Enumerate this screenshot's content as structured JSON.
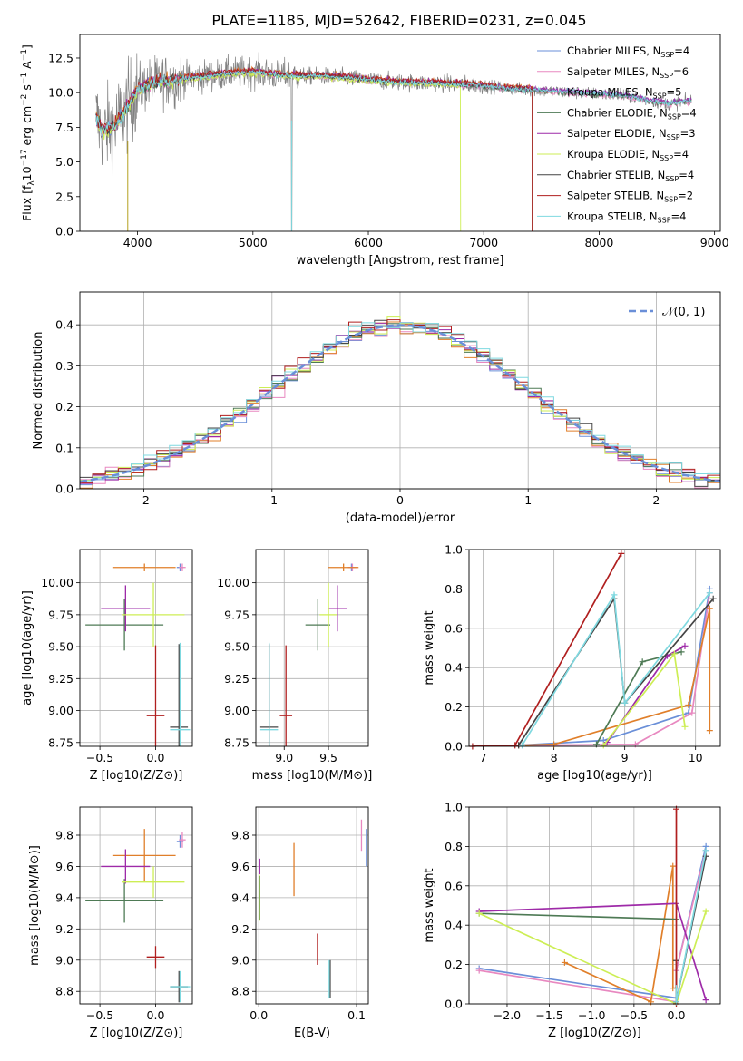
{
  "figure": {
    "title": "PLATE=1185, MJD=52642, FIBERID=0231, z=0.045"
  },
  "models": [
    {
      "key": "chabrier_miles",
      "label": "Chabrier MILES, N",
      "nssp": "=4",
      "color": "#6a8fd8"
    },
    {
      "key": "salpeter_miles",
      "label": "Salpeter MILES, N",
      "nssp": "=6",
      "color": "#e888c0"
    },
    {
      "key": "kroupa_miles",
      "label": "Kroupa MILES, N",
      "nssp": "=5",
      "color": "#e07f2a"
    },
    {
      "key": "chabrier_elodie",
      "label": "Chabrier ELODIE, N",
      "nssp": "=4",
      "color": "#4e7a55"
    },
    {
      "key": "salpeter_elodie",
      "label": "Salpeter ELODIE, N",
      "nssp": "=3",
      "color": "#9e2aa8"
    },
    {
      "key": "kroupa_elodie",
      "label": "Kroupa ELODIE, N",
      "nssp": "=4",
      "color": "#cdee55"
    },
    {
      "key": "chabrier_stelib",
      "label": "Chabrier STELIB, N",
      "nssp": "=4",
      "color": "#444444"
    },
    {
      "key": "salpeter_stelib",
      "label": "Salpeter STELIB, N",
      "nssp": "=2",
      "color": "#b01f1f"
    },
    {
      "key": "kroupa_stelib",
      "label": "Kroupa STELIB, N",
      "nssp": "=4",
      "color": "#7fd9e0"
    }
  ],
  "chart_data": [
    {
      "id": "spectrum",
      "type": "line",
      "title": "PLATE=1185, MJD=52642, FIBERID=0231, z=0.045",
      "xlabel": "wavelength [Angstrom, rest frame]",
      "ylabel": "Flux [f_λ 10^-17 erg cm^-2 s^-1 A^-1]",
      "xlim": [
        3500,
        9050
      ],
      "ylim": [
        0,
        14.2
      ],
      "xticks": [
        4000,
        5000,
        6000,
        7000,
        8000,
        9000
      ],
      "yticks": [
        "0.0",
        "2.5",
        "5.0",
        "7.5",
        "10.0",
        "12.5"
      ],
      "data_series_color": "#808080",
      "continuum": [
        [
          3640,
          8.2
        ],
        [
          3700,
          7.2
        ],
        [
          3800,
          7.6
        ],
        [
          3900,
          8.8
        ],
        [
          4000,
          10.2
        ],
        [
          4100,
          10.6
        ],
        [
          4200,
          10.9
        ],
        [
          4300,
          10.8
        ],
        [
          4400,
          11.0
        ],
        [
          4600,
          11.2
        ],
        [
          4800,
          11.4
        ],
        [
          5000,
          11.5
        ],
        [
          5200,
          11.3
        ],
        [
          5400,
          11.2
        ],
        [
          5600,
          11.2
        ],
        [
          5800,
          11.1
        ],
        [
          6000,
          10.9
        ],
        [
          6200,
          10.8
        ],
        [
          6400,
          10.7
        ],
        [
          6600,
          10.7
        ],
        [
          6800,
          10.6
        ],
        [
          7000,
          10.5
        ],
        [
          7200,
          10.3
        ],
        [
          7400,
          10.2
        ],
        [
          7600,
          10.1
        ],
        [
          7800,
          10.0
        ],
        [
          8000,
          9.9
        ],
        [
          8200,
          9.8
        ],
        [
          8400,
          9.5
        ],
        [
          8600,
          9.2
        ],
        [
          8800,
          9.4
        ]
      ]
    },
    {
      "id": "residuals",
      "type": "line",
      "xlabel": "(data-model)/error",
      "ylabel": "Normed distribution",
      "xlim": [
        -2.5,
        2.5
      ],
      "ylim": [
        0,
        0.48
      ],
      "xticks": [
        -2,
        -1,
        0,
        1,
        2
      ],
      "yticks": [
        "0.0",
        "0.1",
        "0.2",
        "0.3",
        "0.4"
      ],
      "reference": {
        "name": "N(0,1)",
        "label": "𝒩(0, 1)",
        "color": "#6a8fd8"
      }
    },
    {
      "id": "age_vs_z",
      "type": "scatter",
      "xlabel": "Z [log10(Z/Z⊙)]",
      "ylabel": "age [log10(age/yr)]",
      "xlim": [
        -0.68,
        0.33
      ],
      "ylim": [
        8.72,
        10.26
      ],
      "xticks": [
        "−0.5",
        "0.0"
      ],
      "xtick_values": [
        -0.5,
        0.0
      ],
      "yticks": [
        "8.75",
        "9.00",
        "9.25",
        "9.50",
        "9.75",
        "10.00"
      ],
      "ytick_values": [
        8.75,
        9.0,
        9.25,
        9.5,
        9.75,
        10.0
      ],
      "points": [
        {
          "model": "chabrier_miles",
          "x": 0.22,
          "xerr": 0.03,
          "y": 10.12,
          "yerr": 0.03
        },
        {
          "model": "salpeter_miles",
          "x": 0.24,
          "xerr": 0.03,
          "y": 10.12,
          "yerr": 0.03
        },
        {
          "model": "kroupa_miles",
          "x": -0.1,
          "xerr": 0.28,
          "y": 10.12,
          "yerr": 0.03
        },
        {
          "model": "chabrier_elodie",
          "x": -0.28,
          "xerr": 0.35,
          "y": 9.67,
          "yerr": 0.2
        },
        {
          "model": "salpeter_elodie",
          "x": -0.27,
          "xerr": 0.22,
          "y": 9.8,
          "yerr": 0.18
        },
        {
          "model": "kroupa_elodie",
          "x": -0.02,
          "xerr": 0.28,
          "y": 9.75,
          "yerr": 0.25
        },
        {
          "model": "chabrier_stelib",
          "x": 0.21,
          "xerr": 0.08,
          "y": 8.87,
          "yerr": 0.65
        },
        {
          "model": "salpeter_stelib",
          "x": 0.0,
          "xerr": 0.08,
          "y": 8.96,
          "yerr": 0.55
        },
        {
          "model": "kroupa_stelib",
          "x": 0.22,
          "xerr": 0.09,
          "y": 8.85,
          "yerr": 0.68
        }
      ]
    },
    {
      "id": "age_vs_mass",
      "type": "scatter",
      "xlabel": "mass [log10(M/M⊙)]",
      "ylabel": "",
      "xlim": [
        8.68,
        9.95
      ],
      "ylim": [
        8.72,
        10.26
      ],
      "xticks": [
        "9.0",
        "9.5"
      ],
      "xtick_values": [
        9.0,
        9.5
      ],
      "yticks": [
        "8.75",
        "9.00",
        "9.25",
        "9.50",
        "9.75",
        "10.00"
      ],
      "ytick_values": [
        8.75,
        9.0,
        9.25,
        9.5,
        9.75,
        10.0
      ],
      "points": [
        {
          "model": "chabrier_miles",
          "x": 9.76,
          "xerr": 0.04,
          "y": 10.12,
          "yerr": 0.03
        },
        {
          "model": "salpeter_miles",
          "x": 9.77,
          "xerr": 0.05,
          "y": 10.12,
          "yerr": 0.03
        },
        {
          "model": "kroupa_miles",
          "x": 9.67,
          "xerr": 0.17,
          "y": 10.12,
          "yerr": 0.03
        },
        {
          "model": "chabrier_elodie",
          "x": 9.38,
          "xerr": 0.14,
          "y": 9.67,
          "yerr": 0.2
        },
        {
          "model": "salpeter_elodie",
          "x": 9.6,
          "xerr": 0.11,
          "y": 9.8,
          "yerr": 0.18
        },
        {
          "model": "kroupa_elodie",
          "x": 9.5,
          "xerr": 0.1,
          "y": 9.75,
          "yerr": 0.25
        },
        {
          "model": "chabrier_stelib",
          "x": 8.83,
          "xerr": 0.1,
          "y": 8.87,
          "yerr": 0.65
        },
        {
          "model": "salpeter_stelib",
          "x": 9.02,
          "xerr": 0.07,
          "y": 8.96,
          "yerr": 0.55
        },
        {
          "model": "kroupa_stelib",
          "x": 8.83,
          "xerr": 0.1,
          "y": 8.85,
          "yerr": 0.68
        }
      ]
    },
    {
      "id": "mass_weight_vs_age",
      "type": "line",
      "xlabel": "age [log10(age/yr)]",
      "ylabel": "mass weight",
      "xlim": [
        6.8,
        10.35
      ],
      "ylim": [
        0,
        1.0
      ],
      "xticks": [
        "7",
        "8",
        "9",
        "10"
      ],
      "xtick_values": [
        7,
        8,
        9,
        10
      ],
      "yticks": [
        "0.0",
        "0.2",
        "0.4",
        "0.6",
        "0.8",
        "1.0"
      ],
      "ytick_values": [
        0,
        0.2,
        0.4,
        0.6,
        0.8,
        1.0
      ],
      "series": [
        {
          "model": "chabrier_miles",
          "x": [
            7.5,
            8.7,
            9.9,
            10.2
          ],
          "y": [
            0.005,
            0.03,
            0.17,
            0.8
          ]
        },
        {
          "model": "salpeter_miles",
          "x": [
            7.5,
            9.15,
            9.95,
            10.2
          ],
          "y": [
            0.005,
            0.01,
            0.17,
            0.78
          ]
        },
        {
          "model": "kroupa_miles",
          "x": [
            7.5,
            8.0,
            9.9,
            10.2,
            10.2
          ],
          "y": [
            0.005,
            0.01,
            0.21,
            0.7,
            0.08
          ]
        },
        {
          "model": "chabrier_elodie",
          "x": [
            8.6,
            9.25,
            9.8
          ],
          "y": [
            0.01,
            0.43,
            0.48
          ]
        },
        {
          "model": "salpeter_elodie",
          "x": [
            8.75,
            9.6,
            9.85
          ],
          "y": [
            0.02,
            0.46,
            0.51
          ]
        },
        {
          "model": "kroupa_elodie",
          "x": [
            8.7,
            9.7,
            9.85
          ],
          "y": [
            0.005,
            0.47,
            0.1
          ]
        },
        {
          "model": "chabrier_stelib",
          "x": [
            7.5,
            8.85,
            9.0,
            10.25
          ],
          "y": [
            0.005,
            0.75,
            0.22,
            0.75
          ]
        },
        {
          "model": "salpeter_stelib",
          "x": [
            6.85,
            7.45,
            8.95
          ],
          "y": [
            0.0,
            0.005,
            0.98
          ]
        },
        {
          "model": "kroupa_stelib",
          "x": [
            7.55,
            8.85,
            9.0,
            10.2
          ],
          "y": [
            0.005,
            0.77,
            0.22,
            0.78
          ]
        }
      ]
    },
    {
      "id": "mass_vs_z",
      "type": "scatter",
      "xlabel": "Z [log10(Z/Z⊙)]",
      "ylabel": "mass [log10(M/M⊙)]",
      "xlim": [
        -0.68,
        0.33
      ],
      "ylim": [
        8.72,
        9.98
      ],
      "xticks": [
        "−0.5",
        "0.0"
      ],
      "xtick_values": [
        -0.5,
        0.0
      ],
      "yticks": [
        "8.8",
        "9.0",
        "9.2",
        "9.4",
        "9.6",
        "9.8"
      ],
      "ytick_values": [
        8.8,
        9.0,
        9.2,
        9.4,
        9.6,
        9.8
      ],
      "points": [
        {
          "model": "chabrier_miles",
          "x": 0.22,
          "xerr": 0.03,
          "y": 9.76,
          "yerr": 0.04
        },
        {
          "model": "salpeter_miles",
          "x": 0.24,
          "xerr": 0.03,
          "y": 9.77,
          "yerr": 0.05
        },
        {
          "model": "kroupa_miles",
          "x": -0.1,
          "xerr": 0.28,
          "y": 9.67,
          "yerr": 0.17
        },
        {
          "model": "chabrier_elodie",
          "x": -0.28,
          "xerr": 0.35,
          "y": 9.38,
          "yerr": 0.14
        },
        {
          "model": "salpeter_elodie",
          "x": -0.27,
          "xerr": 0.22,
          "y": 9.6,
          "yerr": 0.11
        },
        {
          "model": "kroupa_elodie",
          "x": -0.02,
          "xerr": 0.28,
          "y": 9.5,
          "yerr": 0.1
        },
        {
          "model": "chabrier_stelib",
          "x": 0.21,
          "xerr": 0.08,
          "y": 8.83,
          "yerr": 0.1
        },
        {
          "model": "salpeter_stelib",
          "x": 0.0,
          "xerr": 0.08,
          "y": 9.02,
          "yerr": 0.07
        },
        {
          "model": "kroupa_stelib",
          "x": 0.22,
          "xerr": 0.09,
          "y": 8.83,
          "yerr": 0.1
        }
      ]
    },
    {
      "id": "mass_vs_ebv",
      "type": "scatter",
      "xlabel": "E(B-V)",
      "ylabel": "",
      "xlim": [
        -0.003,
        0.112
      ],
      "ylim": [
        8.72,
        9.98
      ],
      "xticks": [
        "0.0",
        "0.1"
      ],
      "xtick_values": [
        0.0,
        0.1
      ],
      "yticks": [
        "8.8",
        "9.0",
        "9.2",
        "9.4",
        "9.6",
        "9.8"
      ],
      "ytick_values": [
        8.8,
        9.0,
        9.2,
        9.4,
        9.6,
        9.8
      ],
      "points": [
        {
          "model": "chabrier_miles",
          "x": 0.11,
          "xerr": 0,
          "y": 9.72,
          "yerr": 0.12
        },
        {
          "model": "salpeter_miles",
          "x": 0.105,
          "xerr": 0,
          "y": 9.8,
          "yerr": 0.1
        },
        {
          "model": "kroupa_miles",
          "x": 0.036,
          "xerr": 0,
          "y": 9.58,
          "yerr": 0.17
        },
        {
          "model": "chabrier_elodie",
          "x": 0.001,
          "xerr": 0,
          "y": 9.4,
          "yerr": 0.14
        },
        {
          "model": "salpeter_elodie",
          "x": 0.001,
          "xerr": 0,
          "y": 9.6,
          "yerr": 0.05
        },
        {
          "model": "kroupa_elodie",
          "x": 0.0005,
          "xerr": 0,
          "y": 9.4,
          "yerr": 0.15
        },
        {
          "model": "chabrier_stelib",
          "x": 0.073,
          "xerr": 0,
          "y": 8.88,
          "yerr": 0.12
        },
        {
          "model": "salpeter_stelib",
          "x": 0.06,
          "xerr": 0,
          "y": 9.07,
          "yerr": 0.1
        },
        {
          "model": "kroupa_stelib",
          "x": 0.072,
          "xerr": 0,
          "y": 8.88,
          "yerr": 0.12
        }
      ]
    },
    {
      "id": "mass_weight_vs_z",
      "type": "line",
      "xlabel": "Z [log10(Z/Z⊙)]",
      "ylabel": "mass weight",
      "xlim": [
        -2.45,
        0.52
      ],
      "ylim": [
        0,
        1.0
      ],
      "xticks": [
        "−2.0",
        "−1.5",
        "−1.0",
        "−0.5",
        "0.0"
      ],
      "xtick_values": [
        -2.0,
        -1.5,
        -1.0,
        -0.5,
        0.0
      ],
      "yticks": [
        "0.0",
        "0.2",
        "0.4",
        "0.6",
        "0.8",
        "1.0"
      ],
      "ytick_values": [
        0,
        0.2,
        0.4,
        0.6,
        0.8,
        1.0
      ],
      "series": [
        {
          "model": "chabrier_miles",
          "x": [
            -2.33,
            0.0,
            0.0,
            0.35
          ],
          "y": [
            0.18,
            0.03,
            0.17,
            0.8
          ]
        },
        {
          "model": "salpeter_miles",
          "x": [
            -2.33,
            0.0,
            0.0,
            0.35
          ],
          "y": [
            0.17,
            0.01,
            0.17,
            0.78
          ]
        },
        {
          "model": "kroupa_miles",
          "x": [
            -1.32,
            -0.3,
            -0.04,
            -0.04,
            0.0
          ],
          "y": [
            0.21,
            0.01,
            0.7,
            0.08,
            0.08
          ]
        },
        {
          "model": "chabrier_elodie",
          "x": [
            -2.33,
            0.0
          ],
          "y": [
            0.46,
            0.43
          ]
        },
        {
          "model": "salpeter_elodie",
          "x": [
            -2.33,
            0.0,
            0.35
          ],
          "y": [
            0.47,
            0.51,
            0.02
          ]
        },
        {
          "model": "kroupa_elodie",
          "x": [
            -2.33,
            0.0,
            0.35
          ],
          "y": [
            0.46,
            0.0,
            0.47
          ]
        },
        {
          "model": "chabrier_stelib",
          "x": [
            0.0,
            0.0,
            0.35
          ],
          "y": [
            0.22,
            0.01,
            0.75
          ]
        },
        {
          "model": "salpeter_stelib",
          "x": [
            0.0,
            0.0
          ],
          "y": [
            0.0,
            0.99
          ]
        },
        {
          "model": "kroupa_stelib",
          "x": [
            0.0,
            0.0,
            0.35
          ],
          "y": [
            0.08,
            0.01,
            0.78
          ]
        }
      ]
    }
  ]
}
